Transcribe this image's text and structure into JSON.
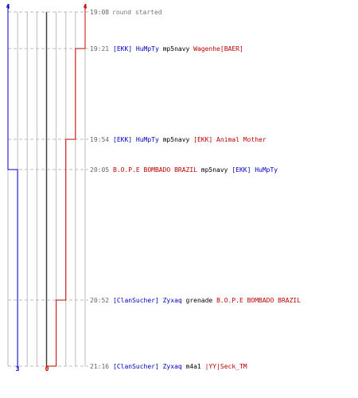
{
  "score_top": {
    "left": "4",
    "right": "4"
  },
  "score_bottom": {
    "left": "3",
    "right": "0"
  },
  "colors": {
    "team_left": "#0000cc",
    "team_right": "#cc0000",
    "grid": "#bbbbbb",
    "center_line": "#444444",
    "dash": "#bbbbbb"
  },
  "axis": {
    "max_score": 4,
    "vertical_lines": 8,
    "center_index": 4
  },
  "events": [
    {
      "time": "19:08",
      "score_left": 4,
      "score_right": 4,
      "text": [
        {
          "text": "round started",
          "color": "gray"
        }
      ]
    },
    {
      "time": "19:21",
      "score_left": 4,
      "score_right": 3,
      "text": [
        {
          "text": "[EKK] HuMpTy",
          "color": "blue"
        },
        {
          "text": " mp5navy ",
          "color": "plain"
        },
        {
          "text": "Wagenhe[BAER]",
          "color": "red"
        }
      ]
    },
    {
      "time": "19:54",
      "score_left": 4,
      "score_right": 2,
      "text": [
        {
          "text": "[EKK] HuMpTy",
          "color": "blue"
        },
        {
          "text": " mp5navy ",
          "color": "plain"
        },
        {
          "text": "[EKK] Animal Mother",
          "color": "red"
        }
      ]
    },
    {
      "time": "20:05",
      "score_left": 3,
      "score_right": 2,
      "text": [
        {
          "text": "B.O.P.E BOMBADO BRAZIL",
          "color": "red"
        },
        {
          "text": " mp5navy ",
          "color": "plain"
        },
        {
          "text": "[EKK] HuMpTy",
          "color": "blue"
        }
      ]
    },
    {
      "time": "20:52",
      "score_left": 3,
      "score_right": 1,
      "text": [
        {
          "text": "[ClanSucher] Zyxaq",
          "color": "blue"
        },
        {
          "text": " grenade ",
          "color": "plain"
        },
        {
          "text": "B.O.P.E BOMBADO BRAZIL",
          "color": "red"
        }
      ]
    },
    {
      "time": "21:16",
      "score_left": 3,
      "score_right": 0,
      "text": [
        {
          "text": "[ClanSucher] Zyxaq",
          "color": "blue"
        },
        {
          "text": " m4a1 ",
          "color": "plain"
        },
        {
          "text": "|YY|Seck_TM",
          "color": "red"
        }
      ]
    }
  ]
}
